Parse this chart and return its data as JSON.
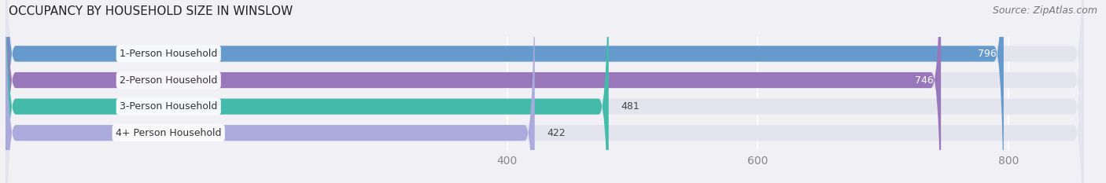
{
  "title": "OCCUPANCY BY HOUSEHOLD SIZE IN WINSLOW",
  "source": "Source: ZipAtlas.com",
  "categories": [
    "1-Person Household",
    "2-Person Household",
    "3-Person Household",
    "4+ Person Household"
  ],
  "values": [
    796,
    746,
    481,
    422
  ],
  "bar_colors": [
    "#6699cc",
    "#9977bb",
    "#44bbaa",
    "#aaaadd"
  ],
  "xlim_left": 0,
  "xlim_right": 860,
  "xticks": [
    400,
    600,
    800
  ],
  "bg_color": "#f0f0f5",
  "bar_bg_color": "#e4e4ee",
  "title_fontsize": 11,
  "source_fontsize": 9,
  "tick_fontsize": 10,
  "bar_label_fontsize": 9,
  "value_fontsize": 9
}
